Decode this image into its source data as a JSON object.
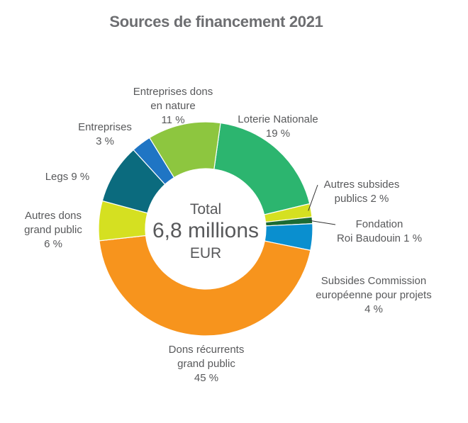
{
  "chart_data": {
    "type": "pie",
    "title": "Sources de financement 2021",
    "center": {
      "line1": "Total",
      "line2": "6,8 millions",
      "line3": "EUR"
    },
    "slices": [
      {
        "label_lines": [
          "Loterie Nationale",
          "19 %"
        ],
        "value": 19,
        "color": "#2cb56f"
      },
      {
        "label_lines": [
          "Autres subsides",
          "publics 2  %"
        ],
        "value": 2,
        "color": "#d5e021"
      },
      {
        "label_lines": [
          "Fondation",
          "Roi Baudouin 1  %"
        ],
        "value": 1,
        "color": "#1c6b33"
      },
      {
        "label_lines": [
          "Subsides Commission",
          "européenne pour projets",
          "4  %"
        ],
        "value": 4,
        "color": "#0a8fcf"
      },
      {
        "label_lines": [
          "Dons récurrents",
          "grand public",
          "45  %"
        ],
        "value": 45,
        "color": "#f7941d"
      },
      {
        "label_lines": [
          "Autres dons",
          "grand public",
          "6  %"
        ],
        "value": 6,
        "color": "#d5e021"
      },
      {
        "label_lines": [
          "Legs 9  %"
        ],
        "value": 9,
        "color": "#0b6b7e"
      },
      {
        "label_lines": [
          "Entreprises",
          "3  %"
        ],
        "value": 3,
        "color": "#1f75c4"
      },
      {
        "label_lines": [
          "Entreprises dons",
          "en nature",
          "11  %"
        ],
        "value": 11,
        "color": "#8dc63f"
      }
    ]
  }
}
